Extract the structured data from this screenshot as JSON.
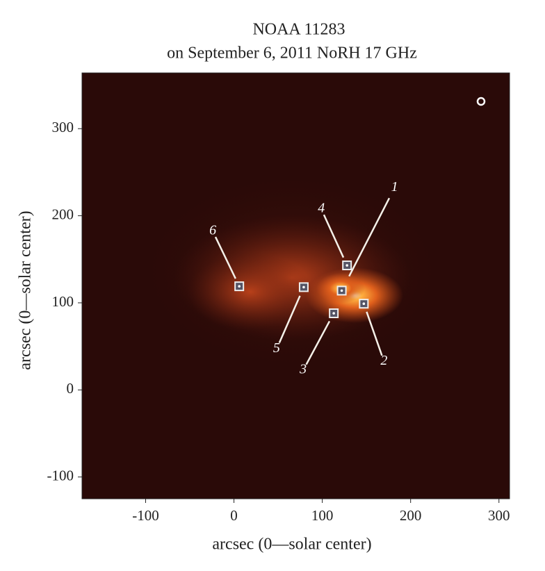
{
  "chart_data": {
    "type": "scatter",
    "title": [
      "NOAA 11283",
      "on September 6, 2011 NoRH 17 GHz"
    ],
    "x_label": "arcsec (0—solar center)",
    "y_label": "arcsec (0—solar center)",
    "labels": [
      "1",
      "2",
      "3",
      "4",
      "5",
      "6"
    ],
    "x": [
      122,
      147,
      113,
      128,
      79,
      6
    ],
    "values": [
      114,
      99,
      88,
      143,
      118,
      119
    ],
    "xlim": [
      -172,
      312
    ],
    "ylim": [
      -125,
      364
    ],
    "xticks": [
      -100,
      0,
      100,
      200,
      300
    ],
    "yticks": [
      -100,
      0,
      100,
      200,
      300
    ]
  }
}
